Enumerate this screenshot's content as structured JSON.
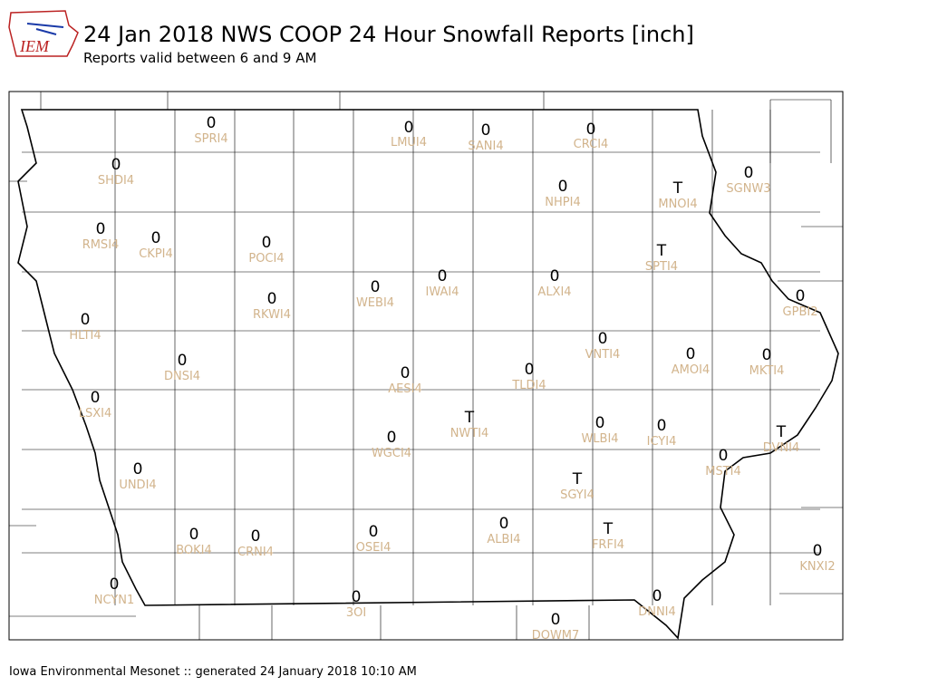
{
  "logo_text": "IEM",
  "header": {
    "title": "24 Jan 2018 NWS COOP 24 Hour Snowfall Reports [inch]",
    "subtitle": "Reports valid between 6 and 9 AM"
  },
  "stations": [
    {
      "value": 0,
      "id": "SPRI4"
    },
    {
      "value": 0,
      "id": "LMUI4"
    },
    {
      "value": 0,
      "id": "SANI4"
    },
    {
      "value": 0,
      "id": "CRCI4"
    },
    {
      "value": 0,
      "id": "SHDI4"
    },
    {
      "value": 0,
      "id": "NHPI4"
    },
    {
      "value": "T",
      "id": "MNOI4"
    },
    {
      "value": 0,
      "id": "SGNW3"
    },
    {
      "value": 0,
      "id": "RMSI4"
    },
    {
      "value": 0,
      "id": "CKPI4"
    },
    {
      "value": 0,
      "id": "POCI4"
    },
    {
      "value": "T",
      "id": "SPTI4"
    },
    {
      "value": 0,
      "id": "WEBI4"
    },
    {
      "value": 0,
      "id": "IWAI4"
    },
    {
      "value": 0,
      "id": "ALXI4"
    },
    {
      "value": 0,
      "id": "RKWI4"
    },
    {
      "value": 0,
      "id": "GPBI2"
    },
    {
      "value": 0,
      "id": "HLTI4"
    },
    {
      "value": 0,
      "id": "VNTI4"
    },
    {
      "value": 0,
      "id": "AMOI4"
    },
    {
      "value": 0,
      "id": "MKTI4"
    },
    {
      "value": 0,
      "id": "DNSI4"
    },
    {
      "value": 0,
      "id": "AESI4"
    },
    {
      "value": 0,
      "id": "TLDI4"
    },
    {
      "value": 0,
      "id": "LSXI4"
    },
    {
      "value": "T",
      "id": "NWTI4"
    },
    {
      "value": 0,
      "id": "WLBI4"
    },
    {
      "value": 0,
      "id": "ICYI4"
    },
    {
      "value": "T",
      "id": "DVNI4"
    },
    {
      "value": 0,
      "id": "WGCI4"
    },
    {
      "value": 0,
      "id": "MSTI4"
    },
    {
      "value": 0,
      "id": "UNDI4"
    },
    {
      "value": "T",
      "id": "SGYI4"
    },
    {
      "value": 0,
      "id": "ALBI4"
    },
    {
      "value": "T",
      "id": "FRFI4"
    },
    {
      "value": 0,
      "id": "BOKI4"
    },
    {
      "value": 0,
      "id": "CRNI4"
    },
    {
      "value": 0,
      "id": "OSEI4"
    },
    {
      "value": 0,
      "id": "KNXI2"
    },
    {
      "value": 0,
      "id": "NCYN1"
    },
    {
      "value": 0,
      "id": "3OI"
    },
    {
      "value": 0,
      "id": "DNNI4"
    },
    {
      "value": 0,
      "id": "DOWM7"
    }
  ],
  "footer": "Iowa Environmental Mesonet :: generated 24 January 2018 10:10 AM"
}
